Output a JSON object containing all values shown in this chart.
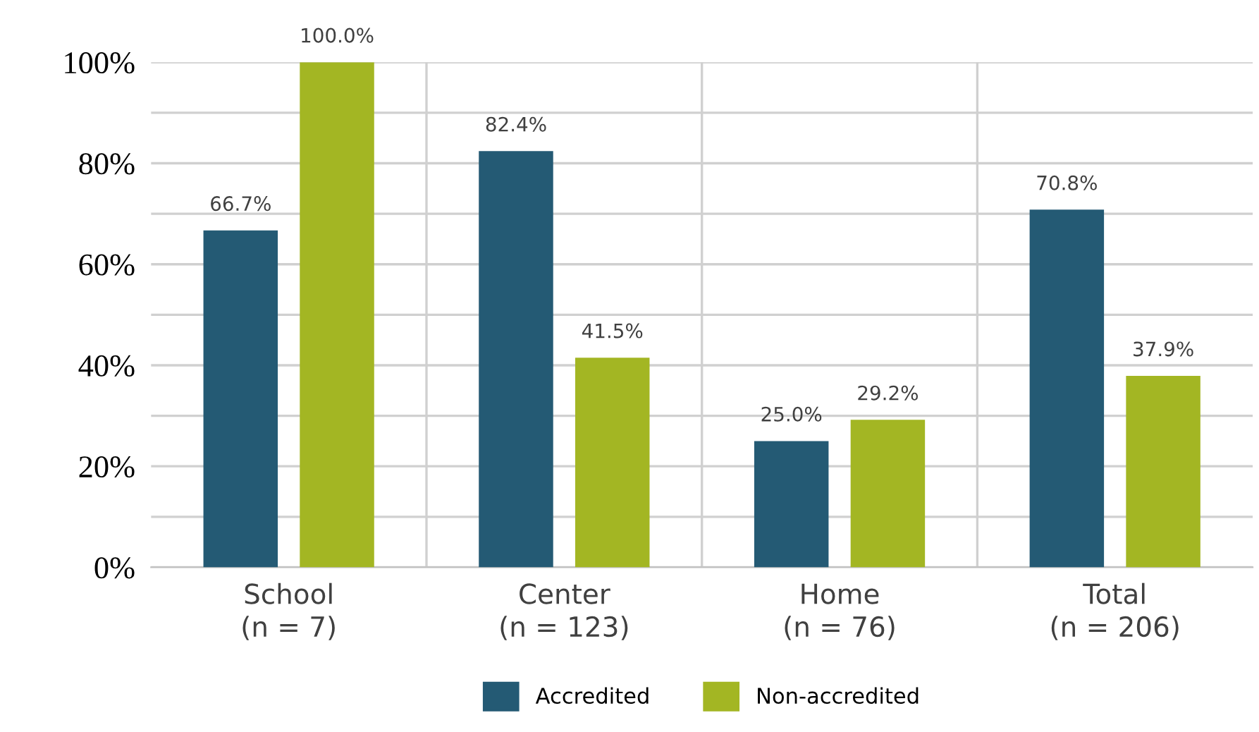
{
  "chart_data": {
    "type": "bar",
    "categories": [
      "School\n(n = 7)",
      "Center\n(n = 123)",
      "Home\n(n = 76)",
      "Total\n(n = 206)"
    ],
    "series": [
      {
        "name": "Accredited",
        "color": "#245a74",
        "values": [
          66.7,
          82.4,
          25.0,
          70.8
        ],
        "value_labels": [
          "66.7%",
          "82.4%",
          "25.0%",
          "70.8%"
        ]
      },
      {
        "name": "Non-accredited",
        "color": "#a3b623",
        "values": [
          100.0,
          41.5,
          29.2,
          37.9
        ],
        "value_labels": [
          "100.0%",
          "41.5%",
          "29.2%",
          "37.9%"
        ]
      }
    ],
    "ylim": [
      0,
      100
    ],
    "yticks": [
      {
        "value": 0,
        "label": "0%"
      },
      {
        "value": 10,
        "label": null
      },
      {
        "value": 20,
        "label": "20%"
      },
      {
        "value": 30,
        "label": null
      },
      {
        "value": 40,
        "label": "40%"
      },
      {
        "value": 50,
        "label": null
      },
      {
        "value": 60,
        "label": "60%"
      },
      {
        "value": 70,
        "label": null
      },
      {
        "value": 80,
        "label": "80%"
      },
      {
        "value": 90,
        "label": null
      },
      {
        "value": 100,
        "label": "100%"
      }
    ],
    "grid": "y",
    "legend": "bottom"
  }
}
